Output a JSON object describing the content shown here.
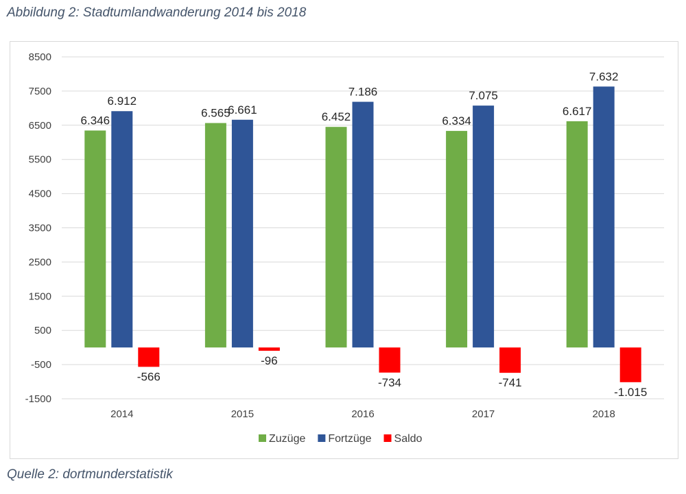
{
  "figure_caption": "Abbildung 2: Stadtumlandwanderung 2014 bis 2018",
  "source_caption": "Quelle 2: dortmunderstatistik",
  "colors": {
    "Zuzüge": "#70ad47",
    "Fortzüge": "#2f5597",
    "Saldo": "#ff0000"
  },
  "chart_data": {
    "type": "bar",
    "categories": [
      "2014",
      "2015",
      "2016",
      "2017",
      "2018"
    ],
    "series": [
      {
        "name": "Zuzüge",
        "values": [
          6346,
          6565,
          6452,
          6334,
          6617
        ],
        "labels": [
          "6.346",
          "6.565",
          "6.452",
          "6.334",
          "6.617"
        ]
      },
      {
        "name": "Fortzüge",
        "values": [
          6912,
          6661,
          7186,
          7075,
          7632
        ],
        "labels": [
          "6.912",
          "6.661",
          "7.186",
          "7.075",
          "7.632"
        ]
      },
      {
        "name": "Saldo",
        "values": [
          -566,
          -96,
          -734,
          -741,
          -1015
        ],
        "labels": [
          "-566",
          "-96",
          "-734",
          "-741",
          "-1.015"
        ]
      }
    ],
    "ylim": [
      -1500,
      8500
    ],
    "yticks": [
      8500,
      7500,
      6500,
      5500,
      4500,
      3500,
      2500,
      1500,
      500,
      -500,
      -1500
    ],
    "grid": true,
    "legend_position": "bottom"
  }
}
